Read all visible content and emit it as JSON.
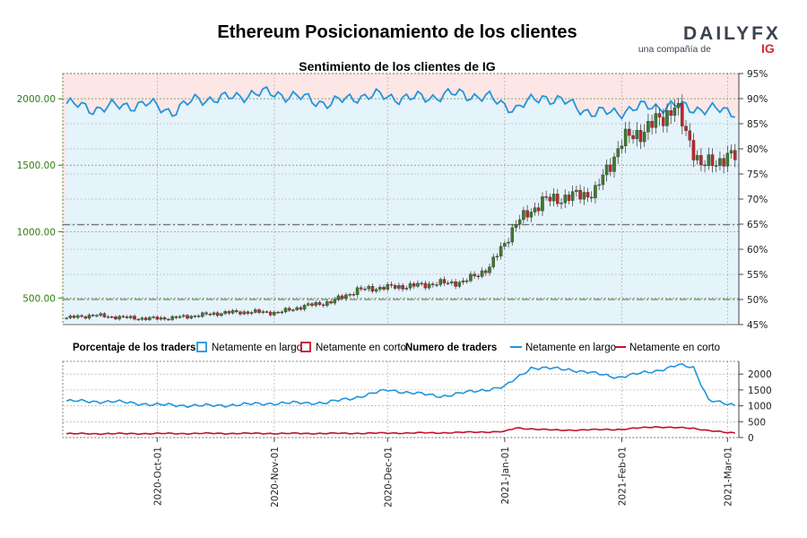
{
  "title": "Ethereum Posicionamiento de los clientes",
  "subtitle": "Sentimiento de los clientes de IG",
  "brand": {
    "logo_text": "DAILYFX",
    "tagline": "una compañía de",
    "tagline_brand": "IG",
    "colors": {
      "logo": "#3b4250",
      "fx": "#3b4250",
      "ig": "#d42b32"
    }
  },
  "colors": {
    "price_axis": "#2f7d12",
    "long": "#2394dc",
    "short": "#c4122a",
    "short_area": "#fde6e6",
    "long_area": "#e5f3fb",
    "candle_up": "#3f7a2c",
    "candle_down": "#c0272d"
  },
  "legend": {
    "pct_title": "Porcentaje de los traders",
    "pct_long": "Netamente en largo",
    "pct_short": "Netamente en corto",
    "num_title": "Numero de traders",
    "num_long": "Netamente en largo",
    "num_short": "Netamente en corto"
  },
  "chart_data": [
    {
      "type": "candlestick",
      "title": "Sentimiento de los clientes de IG",
      "x_range": [
        "2020-09-06",
        "2021-03-04"
      ],
      "x_ticks": [
        "2020-Oct-01",
        "2020-Nov-01",
        "2020-Dec-01",
        "2021-Jan-01",
        "2021-Feb-01",
        "2021-Mar-01"
      ],
      "y_left": {
        "ticks": [
          "500.00",
          "1000.00",
          "1500.00",
          "2000.00"
        ],
        "range": [
          300,
          2190
        ]
      },
      "y_right": {
        "ticks": [
          "45%",
          "50%",
          "55%",
          "60%",
          "65%",
          "70%",
          "75%",
          "80%",
          "85%",
          "90%",
          "95%"
        ],
        "range": [
          45,
          95
        ]
      },
      "reference_lines": [
        {
          "axis": "right",
          "value": 50,
          "style": "dash-dot"
        },
        {
          "axis": "right",
          "value": 64.9,
          "style": "dash-dot"
        }
      ],
      "price_close_weekly": [
        {
          "date": "2020-09-07",
          "close": 350
        },
        {
          "date": "2020-09-14",
          "close": 370
        },
        {
          "date": "2020-09-21",
          "close": 355
        },
        {
          "date": "2020-09-28",
          "close": 345
        },
        {
          "date": "2020-10-05",
          "close": 350
        },
        {
          "date": "2020-10-12",
          "close": 370
        },
        {
          "date": "2020-10-19",
          "close": 390
        },
        {
          "date": "2020-10-26",
          "close": 395
        },
        {
          "date": "2020-11-02",
          "close": 390
        },
        {
          "date": "2020-11-09",
          "close": 440
        },
        {
          "date": "2020-11-16",
          "close": 470
        },
        {
          "date": "2020-11-23",
          "close": 560
        },
        {
          "date": "2020-11-30",
          "close": 580
        },
        {
          "date": "2020-12-07",
          "close": 590
        },
        {
          "date": "2020-12-14",
          "close": 610
        },
        {
          "date": "2020-12-21",
          "close": 620
        },
        {
          "date": "2020-12-28",
          "close": 730
        },
        {
          "date": "2021-01-04",
          "close": 1060
        },
        {
          "date": "2021-01-11",
          "close": 1230
        },
        {
          "date": "2021-01-18",
          "close": 1260
        },
        {
          "date": "2021-01-25",
          "close": 1300
        },
        {
          "date": "2021-02-01",
          "close": 1680
        },
        {
          "date": "2021-02-08",
          "close": 1780
        },
        {
          "date": "2021-02-15",
          "close": 1940
        },
        {
          "date": "2021-02-22",
          "close": 1490
        },
        {
          "date": "2021-03-01",
          "close": 1560
        }
      ],
      "series": [
        {
          "name": "Netamente en largo",
          "axis": "right",
          "values": [
            {
              "date": "2020-09-07",
              "pct": 89
            },
            {
              "date": "2020-09-14",
              "pct": 88
            },
            {
              "date": "2020-09-21",
              "pct": 88.5
            },
            {
              "date": "2020-09-28",
              "pct": 89
            },
            {
              "date": "2020-10-05",
              "pct": 87.5
            },
            {
              "date": "2020-10-12",
              "pct": 90
            },
            {
              "date": "2020-10-19",
              "pct": 90
            },
            {
              "date": "2020-10-26",
              "pct": 91
            },
            {
              "date": "2020-11-02",
              "pct": 91
            },
            {
              "date": "2020-11-09",
              "pct": 90
            },
            {
              "date": "2020-11-16",
              "pct": 89
            },
            {
              "date": "2020-11-23",
              "pct": 90.5
            },
            {
              "date": "2020-11-30",
              "pct": 90.5
            },
            {
              "date": "2020-12-07",
              "pct": 90
            },
            {
              "date": "2020-12-14",
              "pct": 90.5
            },
            {
              "date": "2020-12-21",
              "pct": 91
            },
            {
              "date": "2020-12-28",
              "pct": 90
            },
            {
              "date": "2021-01-04",
              "pct": 88
            },
            {
              "date": "2021-01-11",
              "pct": 90.5
            },
            {
              "date": "2021-01-18",
              "pct": 89
            },
            {
              "date": "2021-01-25",
              "pct": 87
            },
            {
              "date": "2021-02-01",
              "pct": 87.5
            },
            {
              "date": "2021-02-08",
              "pct": 88.5
            },
            {
              "date": "2021-02-15",
              "pct": 88.5
            },
            {
              "date": "2021-02-22",
              "pct": 88
            },
            {
              "date": "2021-03-01",
              "pct": 87.5
            }
          ]
        },
        {
          "name": "Netamente en corto",
          "axis": "right",
          "note": "complement of long (100 - long)"
        }
      ]
    },
    {
      "type": "line",
      "x_range": [
        "2020-09-06",
        "2021-03-04"
      ],
      "y_ticks": [
        "0",
        "500",
        "1000",
        "1500",
        "2000"
      ],
      "ylim": [
        0,
        2400
      ],
      "series": [
        {
          "name": "Netamente en largo",
          "values": [
            {
              "date": "2020-09-06",
              "v": 1150
            },
            {
              "date": "2020-09-20",
              "v": 1130
            },
            {
              "date": "2020-10-01",
              "v": 1030
            },
            {
              "date": "2020-10-15",
              "v": 1000
            },
            {
              "date": "2020-11-01",
              "v": 1080
            },
            {
              "date": "2020-11-15",
              "v": 1100
            },
            {
              "date": "2020-11-22",
              "v": 1250
            },
            {
              "date": "2020-12-01",
              "v": 1500
            },
            {
              "date": "2020-12-15",
              "v": 1300
            },
            {
              "date": "2021-01-01",
              "v": 1600
            },
            {
              "date": "2021-01-08",
              "v": 2200
            },
            {
              "date": "2021-01-18",
              "v": 2150
            },
            {
              "date": "2021-01-31",
              "v": 1900
            },
            {
              "date": "2021-02-10",
              "v": 2100
            },
            {
              "date": "2021-02-16",
              "v": 2280
            },
            {
              "date": "2021-02-20",
              "v": 2200
            },
            {
              "date": "2021-02-24",
              "v": 1200
            },
            {
              "date": "2021-03-01",
              "v": 1030
            },
            {
              "date": "2021-03-04",
              "v": 1000
            }
          ]
        },
        {
          "name": "Netamente en corto",
          "values": [
            {
              "date": "2020-09-06",
              "v": 120
            },
            {
              "date": "2020-10-15",
              "v": 130
            },
            {
              "date": "2020-11-15",
              "v": 130
            },
            {
              "date": "2020-12-15",
              "v": 150
            },
            {
              "date": "2021-01-01",
              "v": 190
            },
            {
              "date": "2021-01-04",
              "v": 300
            },
            {
              "date": "2021-01-15",
              "v": 230
            },
            {
              "date": "2021-02-01",
              "v": 260
            },
            {
              "date": "2021-02-10",
              "v": 340
            },
            {
              "date": "2021-02-20",
              "v": 290
            },
            {
              "date": "2021-03-01",
              "v": 150
            },
            {
              "date": "2021-03-04",
              "v": 140
            }
          ]
        }
      ]
    }
  ]
}
